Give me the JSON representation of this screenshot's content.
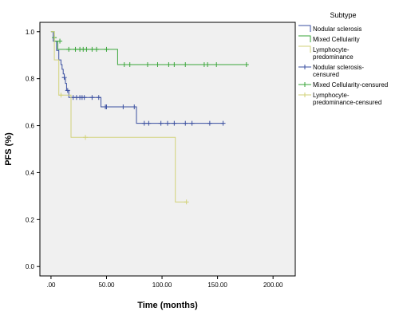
{
  "chart_data": {
    "type": "line",
    "xlabel": "Time (months)",
    "ylabel": "PFS (%)",
    "xlim": [
      -10,
      220
    ],
    "ylim": [
      -0.04,
      1.04
    ],
    "x_ticks": [
      0,
      50,
      100,
      150,
      200
    ],
    "x_tick_labels": [
      ".00",
      "50.00",
      "100.00",
      "150.00",
      "200.00"
    ],
    "y_ticks": [
      0,
      0.2,
      0.4,
      0.6,
      0.8,
      1.0
    ],
    "y_tick_labels": [
      "0.0",
      "0.2",
      "0.4",
      "0.6",
      "0.8",
      "1.0"
    ],
    "plot_background": "#f0f0f0",
    "grid": false,
    "legend": {
      "title": "Subtype",
      "placement": "right",
      "entries": [
        {
          "label": "Nodular sclerosis",
          "color": "#3a4fa0",
          "marker": "line"
        },
        {
          "label": "Mixed Cellularity",
          "color": "#3aa63a",
          "marker": "line"
        },
        {
          "label": "Lymphocyte-predominance",
          "color": "#d2d27a",
          "marker": "line"
        },
        {
          "label": "Nodular sclerosis-censured",
          "color": "#3a4fa0",
          "marker": "plus"
        },
        {
          "label": "Mixed Cellularity-censured",
          "color": "#3aa63a",
          "marker": "plus"
        },
        {
          "label": "Lymphocyte-predominance-censured",
          "color": "#d2d27a",
          "marker": "plus"
        }
      ],
      "display_lines": [
        [
          "Nodular sclerosis"
        ],
        [
          "Mixed Cellularity"
        ],
        [
          "Lymphocyte-",
          "predominance"
        ],
        [
          "Nodular sclerosis-",
          "censured"
        ],
        [
          "Mixed Cellularity-censured"
        ],
        [
          "Lymphocyte-",
          "predominance-censured"
        ]
      ]
    },
    "series": [
      {
        "name": "Nodular sclerosis",
        "color": "#3a4fa0",
        "steps": [
          [
            0,
            1.0
          ],
          [
            2,
            0.96
          ],
          [
            5,
            0.92
          ],
          [
            7,
            0.88
          ],
          [
            9,
            0.86
          ],
          [
            10,
            0.84
          ],
          [
            11,
            0.82
          ],
          [
            12,
            0.8
          ],
          [
            13,
            0.78
          ],
          [
            14,
            0.75
          ],
          [
            16,
            0.72
          ],
          [
            45,
            0.68
          ],
          [
            77,
            0.61
          ],
          [
            155,
            0.61
          ]
        ],
        "censored": [
          [
            12,
            0.805
          ],
          [
            15,
            0.75
          ],
          [
            20,
            0.72
          ],
          [
            23,
            0.72
          ],
          [
            26,
            0.72
          ],
          [
            28,
            0.72
          ],
          [
            30,
            0.72
          ],
          [
            37,
            0.72
          ],
          [
            43,
            0.72
          ],
          [
            49,
            0.68
          ],
          [
            50,
            0.68
          ],
          [
            65,
            0.68
          ],
          [
            75,
            0.68
          ],
          [
            84,
            0.61
          ],
          [
            88,
            0.61
          ],
          [
            99,
            0.61
          ],
          [
            105,
            0.61
          ],
          [
            111,
            0.61
          ],
          [
            121,
            0.61
          ],
          [
            127,
            0.61
          ],
          [
            143,
            0.61
          ],
          [
            155,
            0.61
          ]
        ]
      },
      {
        "name": "Mixed Cellularity",
        "color": "#3aa63a",
        "steps": [
          [
            0,
            1.0
          ],
          [
            3,
            0.96
          ],
          [
            6,
            0.925
          ],
          [
            60,
            0.86
          ],
          [
            176,
            0.86
          ]
        ],
        "censored": [
          [
            3,
            0.975
          ],
          [
            8,
            0.96
          ],
          [
            16,
            0.925
          ],
          [
            22,
            0.925
          ],
          [
            26,
            0.925
          ],
          [
            29,
            0.925
          ],
          [
            32,
            0.925
          ],
          [
            37,
            0.925
          ],
          [
            41,
            0.925
          ],
          [
            50,
            0.925
          ],
          [
            66,
            0.86
          ],
          [
            71,
            0.86
          ],
          [
            87,
            0.86
          ],
          [
            96,
            0.86
          ],
          [
            106,
            0.86
          ],
          [
            111,
            0.86
          ],
          [
            121,
            0.86
          ],
          [
            138,
            0.86
          ],
          [
            141,
            0.86
          ],
          [
            149,
            0.86
          ],
          [
            176,
            0.86
          ]
        ]
      },
      {
        "name": "Lymphocyte-predominance",
        "color": "#d2d27a",
        "steps": [
          [
            0,
            1.0
          ],
          [
            3,
            0.88
          ],
          [
            7,
            0.73
          ],
          [
            18,
            0.55
          ],
          [
            112,
            0.275
          ],
          [
            122,
            0.275
          ]
        ],
        "censored": [
          [
            9,
            0.73
          ],
          [
            31,
            0.55
          ],
          [
            122,
            0.275
          ]
        ]
      }
    ]
  }
}
